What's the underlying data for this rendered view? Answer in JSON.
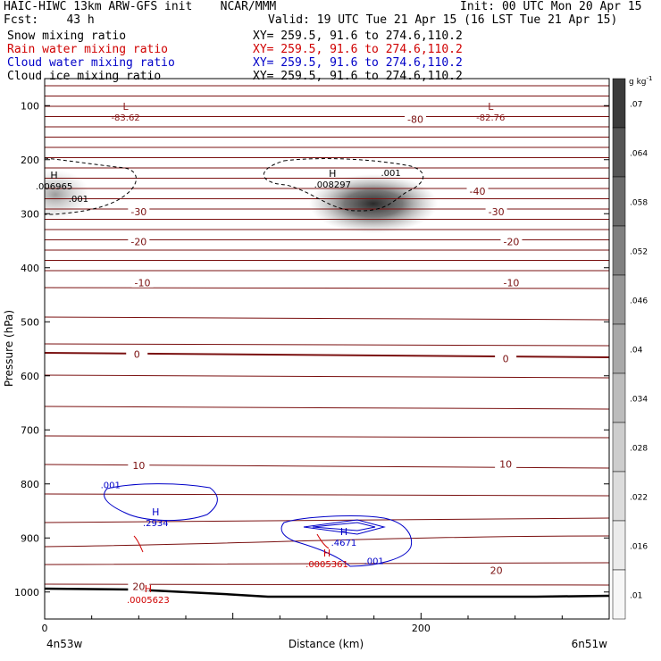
{
  "header": {
    "line1_left": "HAIC-HIWC 13km ARW-GFS init    NCAR/MMM",
    "line1_right": "Init: 00 UTC Mon 20 Apr 15",
    "fcst": "Fcst:    43 h",
    "valid": "Valid: 19 UTC Tue 21 Apr 15 (16 LST Tue 21 Apr 15)"
  },
  "fields": [
    {
      "name": "Snow mixing ratio",
      "xy": "XY= 259.5, 91.6 to 274.6,110.2",
      "color": "#000000"
    },
    {
      "name": "Rain water mixing ratio",
      "xy": "XY= 259.5, 91.6 to 274.6,110.2",
      "color": "#d00000"
    },
    {
      "name": "Cloud water mixing ratio",
      "xy": "XY= 259.5, 91.6 to 274.6,110.2",
      "color": "#0000c8"
    },
    {
      "name": "Cloud ice mixing ratio",
      "xy": "XY= 259.5, 91.6 to 274.6,110.2",
      "color": "#000000"
    }
  ],
  "chart_data": {
    "type": "contour",
    "ylabel": "Pressure (hPa)",
    "xlabel": "Distance (km)",
    "xlim": [
      0,
      300
    ],
    "ylim": [
      1050,
      50
    ],
    "x_ticks": [
      0,
      200
    ],
    "y_ticks": [
      100,
      200,
      300,
      400,
      500,
      600,
      700,
      800,
      900,
      1000
    ],
    "x_endpoints": {
      "left": "4n53w",
      "right": "6n51w"
    },
    "colorbar": {
      "unit": "g kg",
      "unit_exp": "-1",
      "levels": [
        ".07",
        ".064",
        ".058",
        ".052",
        ".046",
        ".04",
        ".034",
        ".028",
        ".022",
        ".016",
        ".01"
      ],
      "colors": [
        "#3b3b3b",
        "#555555",
        "#6b6b6b",
        "#808080",
        "#969696",
        "#a9a9a9",
        "#bcbcbc",
        "#cdcdcd",
        "#dcdcdc",
        "#ebebeb",
        "#f7f7f7"
      ]
    },
    "temperature_labels": [
      {
        "text": "-80",
        "x": 197,
        "p": 125
      },
      {
        "text": "-40",
        "x": 230,
        "p": 258
      },
      {
        "text": "-30",
        "x": 50,
        "p": 296
      },
      {
        "text": "-30",
        "x": 240,
        "p": 296
      },
      {
        "text": "-20",
        "x": 50,
        "p": 352
      },
      {
        "text": "-20",
        "x": 248,
        "p": 352
      },
      {
        "text": "-10",
        "x": 52,
        "p": 428
      },
      {
        "text": "-10",
        "x": 248,
        "p": 428
      },
      {
        "text": "0",
        "x": 49,
        "p": 560
      },
      {
        "text": "0",
        "x": 245,
        "p": 568
      },
      {
        "text": "10",
        "x": 50,
        "p": 766
      },
      {
        "text": "10",
        "x": 245,
        "p": 763
      },
      {
        "text": "20",
        "x": 50,
        "p": 990
      },
      {
        "text": "20",
        "x": 240,
        "p": 960
      }
    ],
    "extrema": [
      {
        "kind": "L",
        "value": "-83.62",
        "x": 43,
        "p": 108,
        "color": "#8b1a1a"
      },
      {
        "kind": "L",
        "value": "-82.76",
        "x": 237,
        "p": 108,
        "color": "#8b1a1a"
      },
      {
        "kind": "H",
        "value": ".006965",
        "x": 5,
        "p": 235,
        "color": "#000000"
      },
      {
        "kind": "H",
        "value": ".008297",
        "x": 153,
        "p": 232,
        "color": "#000000"
      },
      {
        "kind": "H",
        "value": ".2934",
        "x": 59,
        "p": 858,
        "color": "#0000c8"
      },
      {
        "kind": "H",
        "value": ".4671",
        "x": 159,
        "p": 895,
        "color": "#0000c8"
      },
      {
        "kind": "H",
        "value": ".0005623",
        "x": 55,
        "p": 1000,
        "color": "#d00000"
      },
      {
        "kind": "H",
        "value": ".0005361",
        "x": 150,
        "p": 934,
        "color": "#d00000"
      }
    ],
    "contour_labels": [
      {
        "text": ".001",
        "x": 18,
        "p": 278,
        "color": "#000000"
      },
      {
        "text": ".001",
        "x": 184,
        "p": 230,
        "color": "#000000"
      },
      {
        "text": ".001",
        "x": 35,
        "p": 808,
        "color": "#0000c8"
      },
      {
        "text": ".001",
        "x": 175,
        "p": 948,
        "color": "#0000c8"
      }
    ]
  }
}
